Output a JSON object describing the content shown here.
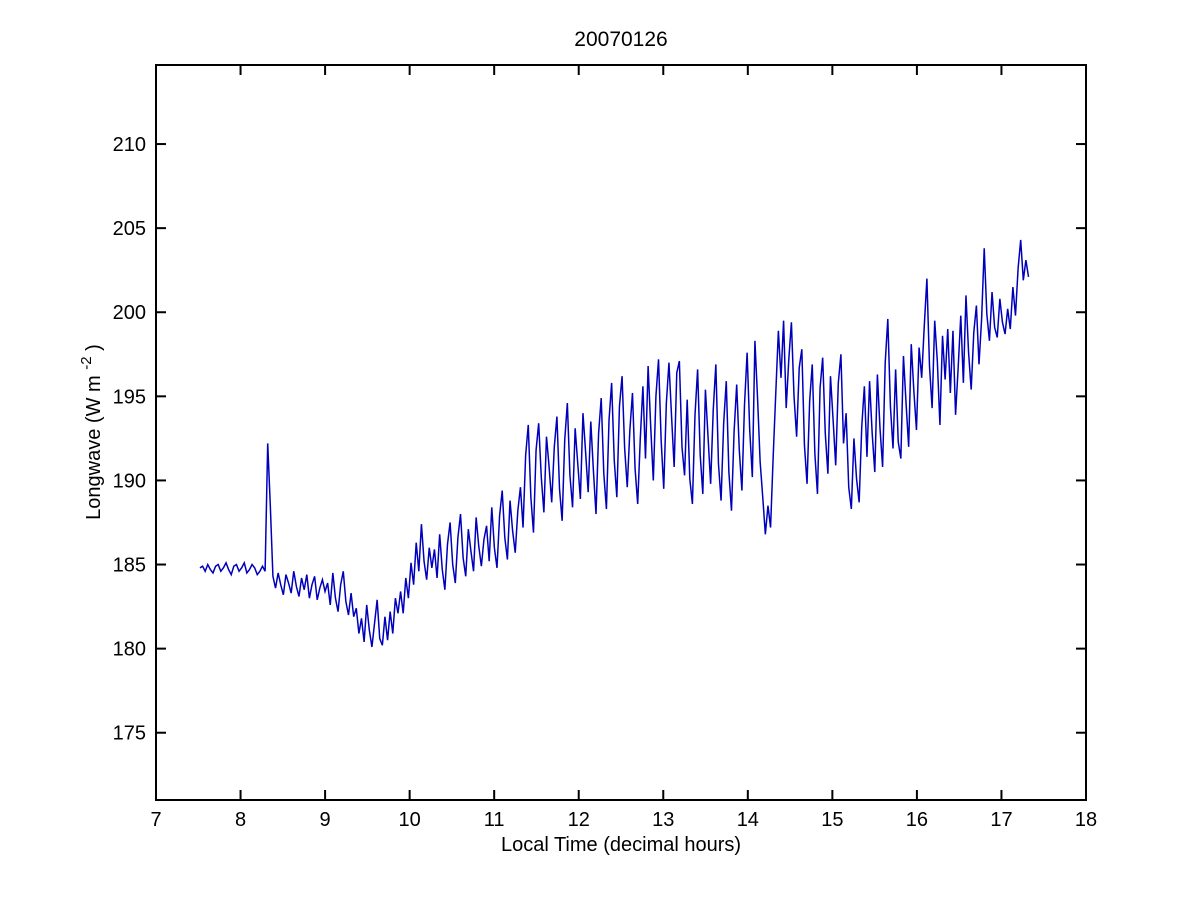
{
  "figure": {
    "background": "#ffffff"
  },
  "chart_data": {
    "type": "line",
    "title": "20070126",
    "xlabel": "Local Time (decimal hours)",
    "ylabel": {
      "main": "Longwave (W m",
      "sup": "-2",
      "close": ")"
    },
    "xlim": [
      7,
      18
    ],
    "ylim": [
      171.0,
      214.7
    ],
    "xticks": [
      7,
      8,
      9,
      10,
      11,
      12,
      13,
      14,
      15,
      16,
      17,
      18
    ],
    "yticks": [
      175,
      180,
      185,
      190,
      195,
      200,
      205,
      210
    ],
    "grid": false,
    "legend_position": "none",
    "line_color": "#0000BB",
    "axis_color": "#000000",
    "series": [
      {
        "name": "longwave",
        "x_start": 7.52,
        "x_end": 17.32,
        "values": [
          184.8,
          184.9,
          184.6,
          185.0,
          184.7,
          184.5,
          184.9,
          185.0,
          184.6,
          184.8,
          185.1,
          184.7,
          184.4,
          184.9,
          185.0,
          184.6,
          184.8,
          185.1,
          184.5,
          184.7,
          185.0,
          184.8,
          184.4,
          184.6,
          184.9,
          184.6,
          192.2,
          188.5,
          184.3,
          183.6,
          184.5,
          183.8,
          183.2,
          184.4,
          183.9,
          183.3,
          184.6,
          183.7,
          183.1,
          184.2,
          183.5,
          184.4,
          183.0,
          183.8,
          184.3,
          182.9,
          183.6,
          184.1,
          183.4,
          183.9,
          182.6,
          184.5,
          183.0,
          182.2,
          183.8,
          184.6,
          182.8,
          182.0,
          183.3,
          181.9,
          182.4,
          180.9,
          181.8,
          180.4,
          182.6,
          181.1,
          180.1,
          181.5,
          182.9,
          180.6,
          180.2,
          181.9,
          180.5,
          182.2,
          180.9,
          183.0,
          182.1,
          183.4,
          182.1,
          184.2,
          183.0,
          185.1,
          183.8,
          186.3,
          184.6,
          187.4,
          185.2,
          184.1,
          186.0,
          184.8,
          185.9,
          184.2,
          186.8,
          184.7,
          183.5,
          186.2,
          187.5,
          185.0,
          183.9,
          186.6,
          188.0,
          185.4,
          184.3,
          187.1,
          185.8,
          184.6,
          187.8,
          186.1,
          184.9,
          186.5,
          187.3,
          185.2,
          188.4,
          186.0,
          184.8,
          187.9,
          189.4,
          186.6,
          185.3,
          188.8,
          187.0,
          185.7,
          188.2,
          189.6,
          187.2,
          191.5,
          193.3,
          189.0,
          186.9,
          191.8,
          193.4,
          190.2,
          188.1,
          192.6,
          190.8,
          188.7,
          192.0,
          193.8,
          189.5,
          187.6,
          192.4,
          194.6,
          190.3,
          188.4,
          193.1,
          191.0,
          188.9,
          194.0,
          191.7,
          189.3,
          193.5,
          190.6,
          188.0,
          192.8,
          194.9,
          190.4,
          188.3,
          193.6,
          195.8,
          191.2,
          189.0,
          194.4,
          196.2,
          191.9,
          189.6,
          193.0,
          195.2,
          190.7,
          188.6,
          192.5,
          195.6,
          191.3,
          196.8,
          193.2,
          190.0,
          195.0,
          197.2,
          192.4,
          189.5,
          194.6,
          197.0,
          193.8,
          190.8,
          196.4,
          197.1,
          192.0,
          190.3,
          194.8,
          190.1,
          188.6,
          193.9,
          196.6,
          191.5,
          189.2,
          195.4,
          192.6,
          189.8,
          194.2,
          196.9,
          191.0,
          188.8,
          193.4,
          195.9,
          190.5,
          188.2,
          192.9,
          195.7,
          191.8,
          189.4,
          194.5,
          197.6,
          193.0,
          190.2,
          198.3,
          194.9,
          191.1,
          189.0,
          186.8,
          188.5,
          187.2,
          191.4,
          195.2,
          198.9,
          196.1,
          199.5,
          194.3,
          197.2,
          199.4,
          195.0,
          192.6,
          196.7,
          197.8,
          192.1,
          189.8,
          194.7,
          196.9,
          191.6,
          189.2,
          195.5,
          197.3,
          192.8,
          190.4,
          196.2,
          193.6,
          190.9,
          195.8,
          197.5,
          192.2,
          194.0,
          189.6,
          188.3,
          192.5,
          190.1,
          188.7,
          193.2,
          195.6,
          191.4,
          195.9,
          192.8,
          190.5,
          196.3,
          193.1,
          190.8,
          197.0,
          199.6,
          194.4,
          191.9,
          196.6,
          192.3,
          191.3,
          197.4,
          194.6,
          192.0,
          198.1,
          195.3,
          193.0,
          197.9,
          196.1,
          199.2,
          202.0,
          196.8,
          194.3,
          199.5,
          197.1,
          193.3,
          198.6,
          196.0,
          199.0,
          195.2,
          198.9,
          193.9,
          196.7,
          199.8,
          195.8,
          201.0,
          197.6,
          195.4,
          198.8,
          200.4,
          196.9,
          199.6,
          203.8,
          199.9,
          198.3,
          201.2,
          199.1,
          198.5,
          200.8,
          199.4,
          198.7,
          200.2,
          199.0,
          201.5,
          199.8,
          202.6,
          204.3,
          201.9,
          203.1,
          202.1
        ]
      }
    ]
  }
}
